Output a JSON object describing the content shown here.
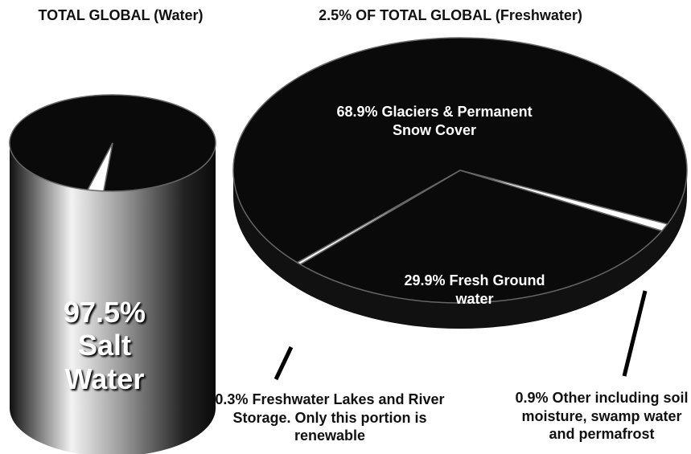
{
  "chart_data": [
    {
      "type": "pie",
      "title": "TOTAL GLOBAL (Water)",
      "values": [
        97.5,
        2.5
      ],
      "value_labels": [
        "97.5% Salt Water",
        null
      ],
      "colors": [
        "#0a0a0a",
        "#ffffff"
      ]
    },
    {
      "type": "pie",
      "title": "2.5% OF TOTAL GLOBAL (Freshwater)",
      "values": [
        68.9,
        0.9,
        29.9,
        0.3
      ],
      "value_labels": [
        "68.9% Glaciers & Permanent Snow Cover",
        "0.9% Other including soil moisture, swamp water and permafrost",
        "29.9% Fresh Ground water",
        "0.3% Freshwater Lakes and River Storage. Only this portion is renewable"
      ],
      "colors": [
        "#0a0a0a",
        "#ffffff",
        "#0a0a0a",
        "#ffffff"
      ]
    }
  ]
}
